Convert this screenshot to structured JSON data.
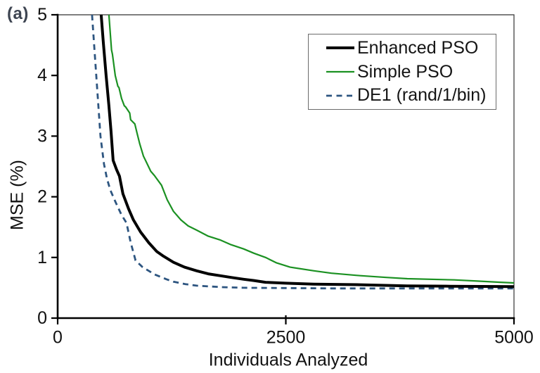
{
  "figure": {
    "panel_label": "(a)",
    "background": "#ffffff"
  },
  "chart_data": {
    "type": "line",
    "title": "",
    "xlabel": "Individuals Analyzed",
    "ylabel": "MSE (%)",
    "xlim": [
      0,
      5000
    ],
    "ylim": [
      0,
      5
    ],
    "x_ticks": [
      0,
      2500,
      5000
    ],
    "y_ticks": [
      0,
      1,
      2,
      3,
      4,
      5
    ],
    "grid": false,
    "axis_color": "#000000",
    "border_color": "#333333",
    "legend": {
      "position": "top-right",
      "border_color": "#6b6b6b"
    },
    "draw_order": [
      1,
      2,
      0
    ],
    "series": [
      {
        "name": "Enhanced PSO",
        "color": "#000000",
        "width": 4,
        "dash": null,
        "points": [
          [
            477,
            5.0
          ],
          [
            500,
            4.55
          ],
          [
            531,
            4.0
          ],
          [
            562,
            3.5
          ],
          [
            585,
            3.08
          ],
          [
            608,
            2.6
          ],
          [
            645,
            2.45
          ],
          [
            677,
            2.34
          ],
          [
            715,
            2.05
          ],
          [
            777,
            1.8
          ],
          [
            830,
            1.62
          ],
          [
            908,
            1.42
          ],
          [
            1000,
            1.24
          ],
          [
            1085,
            1.1
          ],
          [
            1160,
            1.02
          ],
          [
            1269,
            0.92
          ],
          [
            1390,
            0.84
          ],
          [
            1523,
            0.78
          ],
          [
            1650,
            0.73
          ],
          [
            1777,
            0.7
          ],
          [
            1900,
            0.67
          ],
          [
            2038,
            0.64
          ],
          [
            2150,
            0.62
          ],
          [
            2277,
            0.59
          ],
          [
            2500,
            0.575
          ],
          [
            2808,
            0.56
          ],
          [
            3315,
            0.55
          ],
          [
            3831,
            0.53
          ],
          [
            4300,
            0.525
          ],
          [
            5000,
            0.52
          ]
        ]
      },
      {
        "name": "Simple PSO",
        "color": "#1b9122",
        "width": 2.2,
        "dash": null,
        "points": [
          [
            562,
            5.0
          ],
          [
            590,
            4.42
          ],
          [
            600,
            4.35
          ],
          [
            631,
            4.0
          ],
          [
            660,
            3.82
          ],
          [
            672,
            3.8
          ],
          [
            700,
            3.62
          ],
          [
            730,
            3.5
          ],
          [
            745,
            3.48
          ],
          [
            790,
            3.38
          ],
          [
            800,
            3.27
          ],
          [
            846,
            3.2
          ],
          [
            870,
            3.05
          ],
          [
            900,
            2.87
          ],
          [
            940,
            2.67
          ],
          [
            969,
            2.58
          ],
          [
            1020,
            2.42
          ],
          [
            1060,
            2.35
          ],
          [
            1138,
            2.19
          ],
          [
            1200,
            1.95
          ],
          [
            1269,
            1.76
          ],
          [
            1350,
            1.62
          ],
          [
            1430,
            1.52
          ],
          [
            1523,
            1.45
          ],
          [
            1650,
            1.35
          ],
          [
            1777,
            1.29
          ],
          [
            1900,
            1.21
          ],
          [
            2038,
            1.14
          ],
          [
            2150,
            1.07
          ],
          [
            2277,
            1.0
          ],
          [
            2400,
            0.91
          ],
          [
            2546,
            0.84
          ],
          [
            2808,
            0.78
          ],
          [
            3000,
            0.74
          ],
          [
            3315,
            0.7
          ],
          [
            3600,
            0.67
          ],
          [
            3831,
            0.65
          ],
          [
            4346,
            0.63
          ],
          [
            4600,
            0.61
          ],
          [
            4854,
            0.59
          ],
          [
            5000,
            0.58
          ]
        ]
      },
      {
        "name": "DE1 (rand/1/bin)",
        "color": "#2d5580",
        "width": 2.8,
        "dash": "8,6",
        "points": [
          [
            377,
            5.0
          ],
          [
            400,
            4.5
          ],
          [
            423,
            4.0
          ],
          [
            446,
            3.5
          ],
          [
            469,
            3.0
          ],
          [
            508,
            2.54
          ],
          [
            540,
            2.3
          ],
          [
            577,
            2.11
          ],
          [
            638,
            1.9
          ],
          [
            700,
            1.7
          ],
          [
            754,
            1.57
          ],
          [
            800,
            1.25
          ],
          [
            854,
            0.95
          ],
          [
            931,
            0.84
          ],
          [
            1062,
            0.72
          ],
          [
            1192,
            0.64
          ],
          [
            1269,
            0.6
          ],
          [
            1400,
            0.56
          ],
          [
            1523,
            0.535
          ],
          [
            1800,
            0.51
          ],
          [
            2038,
            0.5
          ],
          [
            2500,
            0.495
          ],
          [
            3000,
            0.49
          ],
          [
            4000,
            0.49
          ],
          [
            5000,
            0.49
          ]
        ]
      }
    ]
  }
}
